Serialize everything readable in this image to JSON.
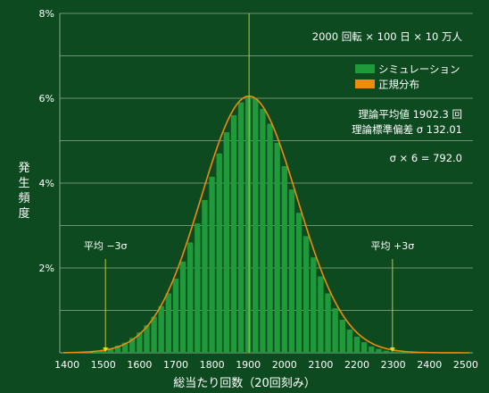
{
  "chart_data": {
    "type": "bar",
    "title": "",
    "xlabel": "総当たり回数（20回刻み）",
    "ylabel": "発生頻度",
    "xlim": [
      1380,
      2520
    ],
    "ylim": [
      0,
      8
    ],
    "x_ticks": [
      "1400",
      "1500",
      "1600",
      "1700",
      "1800",
      "1900",
      "2000",
      "2100",
      "2200",
      "2300",
      "2400",
      "2500"
    ],
    "y_ticks": [
      "2%",
      "4%",
      "6%",
      "8%"
    ],
    "grid": true,
    "colors": {
      "simulation": "#1f9a3a",
      "normal": "#f08a10",
      "marker": "#b8c83a"
    },
    "info_lines": [
      "2000 回転 × 100 日 × 10 万人",
      "理論平均値 1902.3 回",
      "理論標準偏差 σ 132.01",
      "σ × 6 = 792.0"
    ],
    "legend": [
      {
        "name": "シミュレーション",
        "color": "#1f9a3a"
      },
      {
        "name": "正規分布",
        "color": "#f08a10"
      }
    ],
    "mean": 1902.3,
    "sigma": 132.01,
    "annotations": [
      {
        "text": "平均 −3σ",
        "x": 1506
      },
      {
        "text": "平均 +3σ",
        "x": 2298
      }
    ],
    "bars_x": [
      1440,
      1460,
      1480,
      1500,
      1520,
      1540,
      1560,
      1580,
      1600,
      1620,
      1640,
      1660,
      1680,
      1700,
      1720,
      1740,
      1760,
      1780,
      1800,
      1820,
      1840,
      1860,
      1880,
      1900,
      1920,
      1940,
      1960,
      1980,
      2000,
      2020,
      2040,
      2060,
      2080,
      2100,
      2120,
      2140,
      2160,
      2180,
      2200,
      2220,
      2240,
      2260,
      2280,
      2300,
      2320,
      2340,
      2360,
      2380
    ],
    "bars_y": [
      0.02,
      0.03,
      0.05,
      0.07,
      0.11,
      0.17,
      0.24,
      0.35,
      0.48,
      0.65,
      0.85,
      1.1,
      1.4,
      1.75,
      2.15,
      2.6,
      3.05,
      3.6,
      4.15,
      4.7,
      5.2,
      5.6,
      5.9,
      6.05,
      6.0,
      5.75,
      5.4,
      4.95,
      4.4,
      3.85,
      3.3,
      2.75,
      2.25,
      1.8,
      1.4,
      1.05,
      0.78,
      0.55,
      0.38,
      0.25,
      0.15,
      0.09,
      0.05,
      0.03,
      0.02,
      0.01,
      0.01,
      0.005
    ]
  }
}
